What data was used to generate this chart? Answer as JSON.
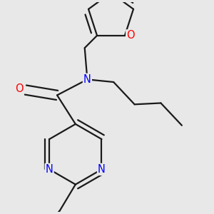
{
  "background_color": "#e8e8e8",
  "bond_color": "#1a1a1a",
  "bond_width": 1.6,
  "atom_colors": {
    "N": "#0000ff",
    "O": "#ff0000",
    "C": "#1a1a1a"
  },
  "font_size_atom": 10.5
}
